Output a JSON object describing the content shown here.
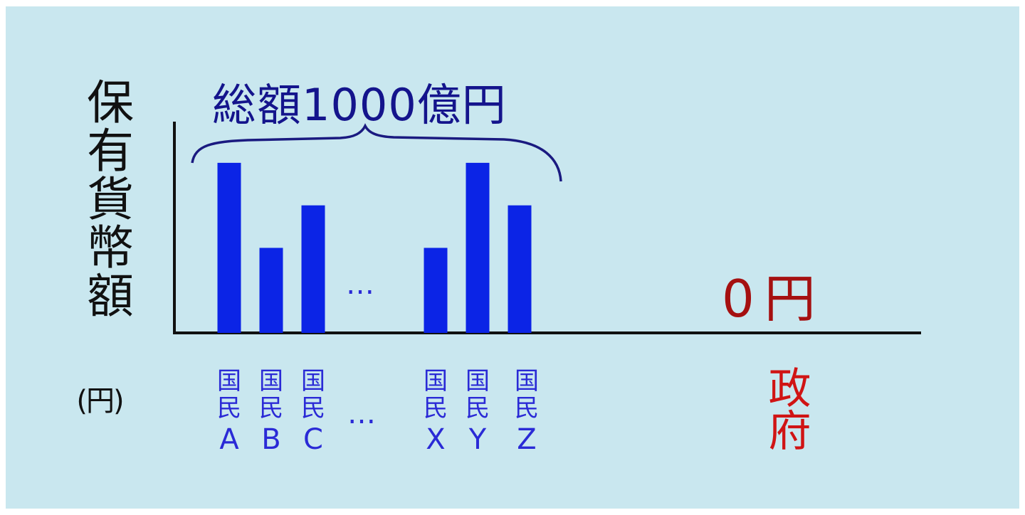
{
  "chart_data": {
    "type": "bar",
    "ylabel": "保有貨幣額",
    "yunit": "(円)",
    "annotation_total": "総額1000億円",
    "ellipsis": "…",
    "categories": [
      {
        "line1": "国",
        "line2": "民",
        "letter": "A"
      },
      {
        "line1": "国",
        "line2": "民",
        "letter": "B"
      },
      {
        "line1": "国",
        "line2": "民",
        "letter": "C"
      },
      {
        "line1": "国",
        "line2": "民",
        "letter": "X"
      },
      {
        "line1": "国",
        "line2": "民",
        "letter": "Y"
      },
      {
        "line1": "国",
        "line2": "民",
        "letter": "Z"
      }
    ],
    "values": [
      4,
      2,
      3,
      2,
      4,
      3
    ],
    "ylim": [
      0,
      4.4
    ],
    "government": {
      "value_label": "0円",
      "label": "政府",
      "value": 0
    },
    "colors": {
      "bars": "#0b24e6",
      "background": "#c9e7ef",
      "annotation": "#14148c",
      "government_value": "#a51010",
      "government_label": "#d01414",
      "axis": "#111111"
    }
  }
}
